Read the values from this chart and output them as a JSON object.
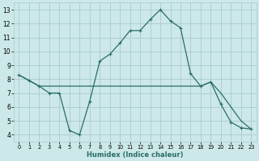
{
  "line1_x": [
    0,
    1,
    2,
    3,
    4,
    5,
    6,
    7,
    8,
    9,
    10,
    11,
    12,
    13,
    14,
    15,
    16,
    17,
    18,
    19,
    20,
    21,
    22,
    23
  ],
  "line1_y": [
    8.3,
    7.9,
    7.5,
    7.0,
    7.0,
    4.3,
    4.0,
    6.4,
    9.3,
    9.8,
    10.6,
    11.5,
    11.5,
    12.3,
    13.0,
    12.2,
    11.7,
    8.4,
    7.5,
    7.8,
    6.2,
    4.9,
    4.5,
    4.4
  ],
  "line2_x": [
    0,
    2,
    7,
    10,
    14,
    18,
    19,
    20,
    21,
    22,
    23
  ],
  "line2_y": [
    8.3,
    7.5,
    7.5,
    7.5,
    7.5,
    7.5,
    7.8,
    7.0,
    6.0,
    5.0,
    4.4
  ],
  "line_color": "#2a6e62",
  "bg_color": "#cce8e8",
  "grid_color": "#aacccc",
  "xlabel": "Humidex (Indice chaleur)",
  "xlim": [
    -0.5,
    23.5
  ],
  "ylim": [
    3.5,
    13.5
  ],
  "yticks": [
    4,
    5,
    6,
    7,
    8,
    9,
    10,
    11,
    12,
    13
  ],
  "xticks": [
    0,
    1,
    2,
    3,
    4,
    5,
    6,
    7,
    8,
    9,
    10,
    11,
    12,
    13,
    14,
    15,
    16,
    17,
    18,
    19,
    20,
    21,
    22,
    23
  ]
}
